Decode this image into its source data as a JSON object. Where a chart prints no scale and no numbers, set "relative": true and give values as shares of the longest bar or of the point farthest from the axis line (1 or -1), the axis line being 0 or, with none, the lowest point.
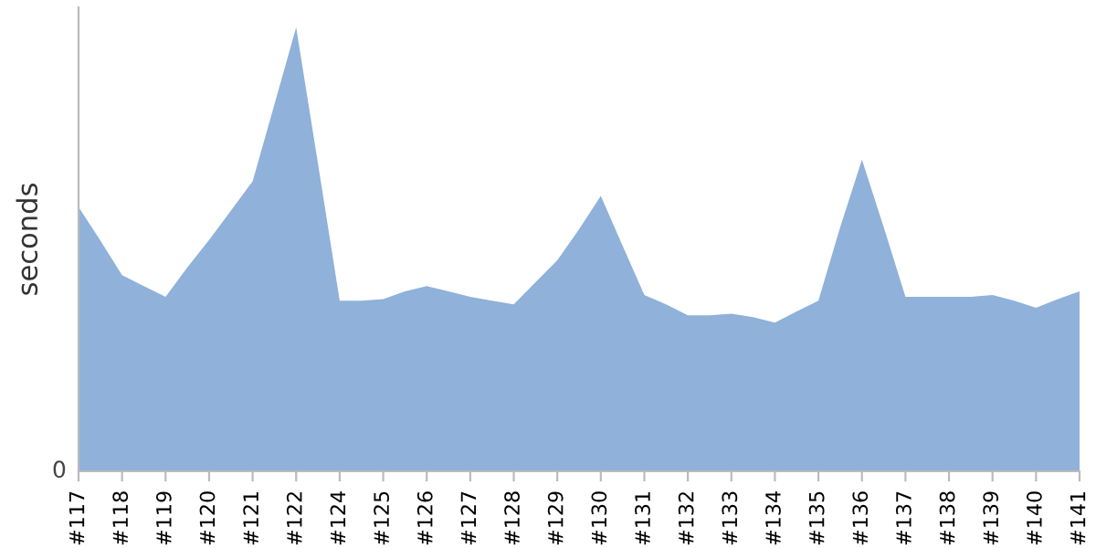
{
  "chart_data": {
    "type": "area",
    "ylabel": "seconds",
    "relative": true,
    "color": "#8fb1da",
    "grid": false,
    "legend": false,
    "annotations": [
      "0"
    ],
    "categories": [
      "#117",
      null,
      "#118",
      null,
      "#119",
      null,
      "#120",
      null,
      "#121",
      null,
      "#122",
      null,
      "#124",
      null,
      "#125",
      null,
      "#126",
      null,
      "#127",
      null,
      "#128",
      null,
      "#129",
      null,
      "#130",
      null,
      "#131",
      null,
      "#132",
      null,
      "#133",
      null,
      "#134",
      null,
      "#135",
      null,
      "#136",
      null,
      "#137",
      null,
      "#138",
      null,
      "#139",
      null,
      "#140",
      null,
      "#141"
    ],
    "values": [
      0.595,
      0.52,
      0.442,
      0.417,
      0.393,
      0.459,
      0.521,
      0.587,
      0.653,
      0.826,
      1.0,
      0.694,
      0.384,
      0.384,
      0.388,
      0.405,
      0.417,
      0.405,
      0.393,
      0.384,
      0.376,
      0.426,
      0.475,
      0.545,
      0.62,
      0.508,
      0.397,
      0.376,
      0.351,
      0.351,
      0.355,
      0.347,
      0.335,
      0.36,
      0.384,
      0.55,
      0.702,
      0.55,
      0.393,
      0.393,
      0.393,
      0.393,
      0.397,
      0.384,
      0.368,
      0.388,
      0.405
    ]
  }
}
